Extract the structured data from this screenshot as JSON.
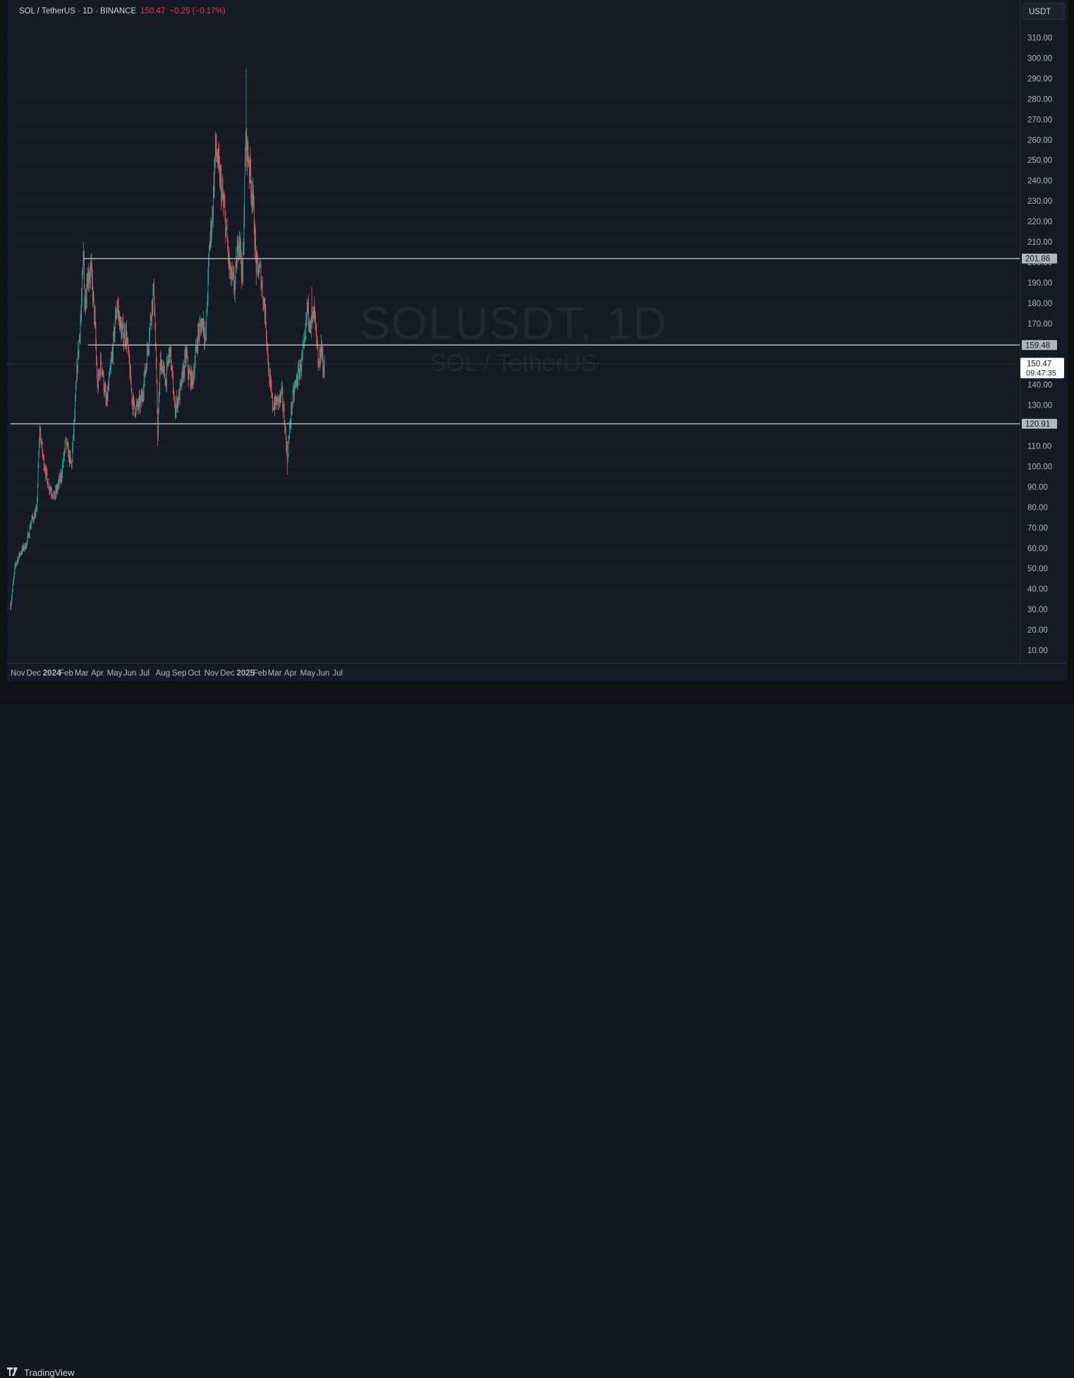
{
  "legend": {
    "symbol": "SOL / TetherUS · 1D · BINANCE",
    "last": "150.47",
    "change": "−0.25 (−0.17%)"
  },
  "currency_label": "USDT",
  "watermark": {
    "main": "SOLUSDT, 1D",
    "sub": "SOL / TetherUS"
  },
  "footer": {
    "brand": "TradingView"
  },
  "colors": {
    "up": "#26a69a",
    "down": "#ef5350",
    "level_line": "#b2b5be",
    "axis_text": "#b2b5be",
    "background": "#161a25"
  },
  "chart_data": {
    "type": "candlestick",
    "interval": "1D",
    "ylim": [
      0,
      317
    ],
    "y_ticks": [
      "10.00",
      "20.00",
      "30.00",
      "40.00",
      "50.00",
      "60.00",
      "70.00",
      "80.00",
      "90.00",
      "100.00",
      "110.00",
      "120.00",
      "130.00",
      "140.00",
      "150.00",
      "160.00",
      "170.00",
      "180.00",
      "190.00",
      "200.00",
      "210.00",
      "220.00",
      "230.00",
      "240.00",
      "250.00",
      "260.00",
      "270.00",
      "280.00",
      "290.00",
      "300.00",
      "310.00"
    ],
    "x_ticks": [
      {
        "label": "Nov",
        "date": "2023-11-01"
      },
      {
        "label": "Dec",
        "date": "2023-12-01"
      },
      {
        "label": "2024",
        "date": "2024-01-01",
        "bold": true
      },
      {
        "label": "Feb",
        "date": "2024-02-01"
      },
      {
        "label": "Mar",
        "date": "2024-03-01"
      },
      {
        "label": "Apr",
        "date": "2024-04-01"
      },
      {
        "label": "May",
        "date": "2024-05-01"
      },
      {
        "label": "Jun",
        "date": "2024-06-01"
      },
      {
        "label": "Jul",
        "date": "2024-07-01"
      },
      {
        "label": "Aug",
        "date": "2024-08-01"
      },
      {
        "label": "Sep",
        "date": "2024-09-01"
      },
      {
        "label": "Oct",
        "date": "2024-10-01"
      },
      {
        "label": "Nov",
        "date": "2024-11-01"
      },
      {
        "label": "Dec",
        "date": "2024-12-01"
      },
      {
        "label": "2025",
        "date": "2025-01-01",
        "bold": true
      },
      {
        "label": "Feb",
        "date": "2025-02-01"
      },
      {
        "label": "Mar",
        "date": "2025-03-01"
      },
      {
        "label": "Apr",
        "date": "2025-04-01"
      },
      {
        "label": "May",
        "date": "2025-05-01"
      },
      {
        "label": "Jun",
        "date": "2025-06-01"
      },
      {
        "label": "Jul",
        "date": "2025-07-01"
      }
    ],
    "horizontal_levels": [
      {
        "price": 201.86,
        "label": "201.86",
        "from": "2024-03-18"
      },
      {
        "price": 159.48,
        "label": "159.48",
        "from": "2024-03-26"
      },
      {
        "price": 120.91,
        "label": "120.91",
        "from": "2023-11-01"
      }
    ],
    "last_price": {
      "price": 150.47,
      "label": "150.47",
      "countdown": "09:47:35"
    },
    "anchors": [
      [
        "2023-11-01",
        32
      ],
      [
        "2023-11-10",
        52
      ],
      [
        "2023-11-20",
        58
      ],
      [
        "2023-12-01",
        62
      ],
      [
        "2023-12-10",
        73
      ],
      [
        "2023-12-20",
        78
      ],
      [
        "2023-12-26",
        118
      ],
      [
        "2024-01-01",
        105
      ],
      [
        "2024-01-10",
        92
      ],
      [
        "2024-01-23",
        85
      ],
      [
        "2024-02-05",
        96
      ],
      [
        "2024-02-13",
        112
      ],
      [
        "2024-02-24",
        100
      ],
      [
        "2024-03-01",
        125
      ],
      [
        "2024-03-06",
        150
      ],
      [
        "2024-03-13",
        175
      ],
      [
        "2024-03-18",
        205
      ],
      [
        "2024-03-20",
        178
      ],
      [
        "2024-03-25",
        193
      ],
      [
        "2024-04-01",
        196
      ],
      [
        "2024-04-08",
        172
      ],
      [
        "2024-04-13",
        138
      ],
      [
        "2024-04-20",
        152
      ],
      [
        "2024-04-30",
        130
      ],
      [
        "2024-05-10",
        152
      ],
      [
        "2024-05-20",
        180
      ],
      [
        "2024-05-28",
        166
      ],
      [
        "2024-06-07",
        164
      ],
      [
        "2024-06-18",
        132
      ],
      [
        "2024-06-24",
        128
      ],
      [
        "2024-07-05",
        132
      ],
      [
        "2024-07-15",
        152
      ],
      [
        "2024-07-25",
        180
      ],
      [
        "2024-07-29",
        187
      ],
      [
        "2024-08-05",
        118
      ],
      [
        "2024-08-10",
        152
      ],
      [
        "2024-08-20",
        142
      ],
      [
        "2024-08-28",
        158
      ],
      [
        "2024-09-06",
        128
      ],
      [
        "2024-09-15",
        135
      ],
      [
        "2024-09-28",
        155
      ],
      [
        "2024-10-02",
        145
      ],
      [
        "2024-10-10",
        142
      ],
      [
        "2024-10-20",
        165
      ],
      [
        "2024-10-30",
        172
      ],
      [
        "2024-11-03",
        160
      ],
      [
        "2024-11-11",
        210
      ],
      [
        "2024-11-16",
        222
      ],
      [
        "2024-11-22",
        257
      ],
      [
        "2024-12-01",
        240
      ],
      [
        "2024-12-10",
        222
      ],
      [
        "2024-12-19",
        195
      ],
      [
        "2024-12-28",
        188
      ],
      [
        "2025-01-06",
        215
      ],
      [
        "2025-01-12",
        190
      ],
      [
        "2025-01-18",
        260
      ],
      [
        "2025-01-24",
        250
      ],
      [
        "2025-02-01",
        230
      ],
      [
        "2025-02-07",
        198
      ],
      [
        "2025-02-15",
        195
      ],
      [
        "2025-02-25",
        172
      ],
      [
        "2025-03-03",
        145
      ],
      [
        "2025-03-10",
        130
      ],
      [
        "2025-03-20",
        132
      ],
      [
        "2025-03-28",
        135
      ],
      [
        "2025-04-07",
        105
      ],
      [
        "2025-04-15",
        130
      ],
      [
        "2025-04-22",
        140
      ],
      [
        "2025-05-01",
        148
      ],
      [
        "2025-05-10",
        160
      ],
      [
        "2025-05-14",
        178
      ],
      [
        "2025-05-22",
        170
      ],
      [
        "2025-05-28",
        175
      ],
      [
        "2025-06-01",
        160
      ],
      [
        "2025-06-05",
        148
      ],
      [
        "2025-06-10",
        160
      ],
      [
        "2025-06-13",
        148
      ],
      [
        "2025-06-16",
        150.47
      ]
    ],
    "notable_wicks": [
      {
        "date": "2024-03-18",
        "high": 210
      },
      {
        "date": "2024-08-05",
        "low": 110
      },
      {
        "date": "2024-11-22",
        "high": 264
      },
      {
        "date": "2025-01-19",
        "high": 295
      },
      {
        "date": "2025-04-07",
        "low": 96
      },
      {
        "date": "2025-05-23",
        "high": 188
      }
    ]
  }
}
